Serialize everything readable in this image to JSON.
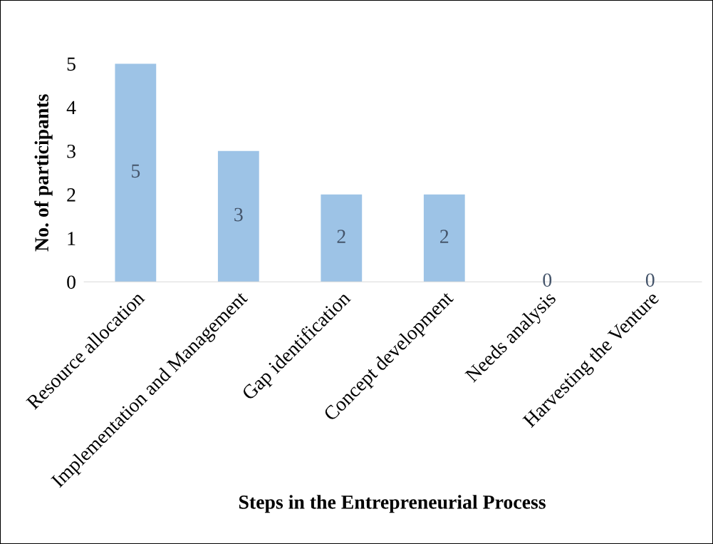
{
  "chart_data": {
    "type": "bar",
    "xlabel": "Steps in the Entrepreneurial Process",
    "ylabel": "No. of participants",
    "categories": [
      "Resource allocation",
      "Implementation and Management",
      "Gap identification",
      "Concept development",
      "Needs analysis",
      "Harvesting the Venture"
    ],
    "values": [
      5,
      3,
      2,
      2,
      0,
      0
    ],
    "color": "#9dc3e6",
    "ylim": [
      0,
      5
    ],
    "yticks": [
      0,
      1,
      2,
      3,
      4,
      5
    ],
    "grid": false,
    "data_labels": true
  }
}
